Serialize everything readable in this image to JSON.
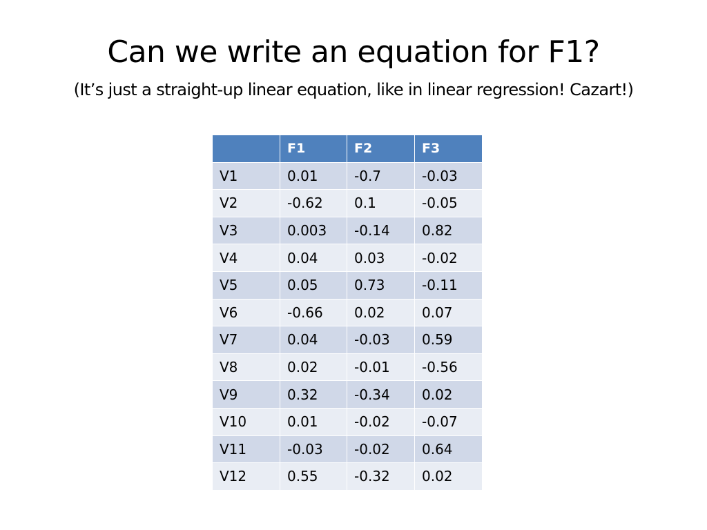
{
  "slide": {
    "title": "Can we write an equation for F1?",
    "subtitle": "(It’s just a straight-up linear equation, like in linear regression! Cazart!)"
  },
  "table": {
    "headers": [
      "",
      "F1",
      "F2",
      "F3"
    ],
    "rows": [
      [
        "V1",
        "0.01",
        "-0.7",
        "-0.03"
      ],
      [
        "V2",
        "-0.62",
        "0.1",
        "-0.05"
      ],
      [
        "V3",
        "0.003",
        "-0.14",
        "0.82"
      ],
      [
        "V4",
        "0.04",
        "0.03",
        "-0.02"
      ],
      [
        "V5",
        "0.05",
        "0.73",
        "-0.11"
      ],
      [
        "V6",
        "-0.66",
        "0.02",
        "0.07"
      ],
      [
        "V7",
        "0.04",
        "-0.03",
        "0.59"
      ],
      [
        "V8",
        "0.02",
        "-0.01",
        "-0.56"
      ],
      [
        "V9",
        "0.32",
        "-0.34",
        "0.02"
      ],
      [
        "V10",
        "0.01",
        "-0.02",
        "-0.07"
      ],
      [
        "V11",
        "-0.03",
        "-0.02",
        "0.64"
      ],
      [
        "V12",
        "0.55",
        "-0.32",
        "0.02"
      ]
    ]
  },
  "colors": {
    "header_bg": "#4f81bd",
    "row_odd_bg": "#d0d8e8",
    "row_even_bg": "#e9edf4"
  }
}
